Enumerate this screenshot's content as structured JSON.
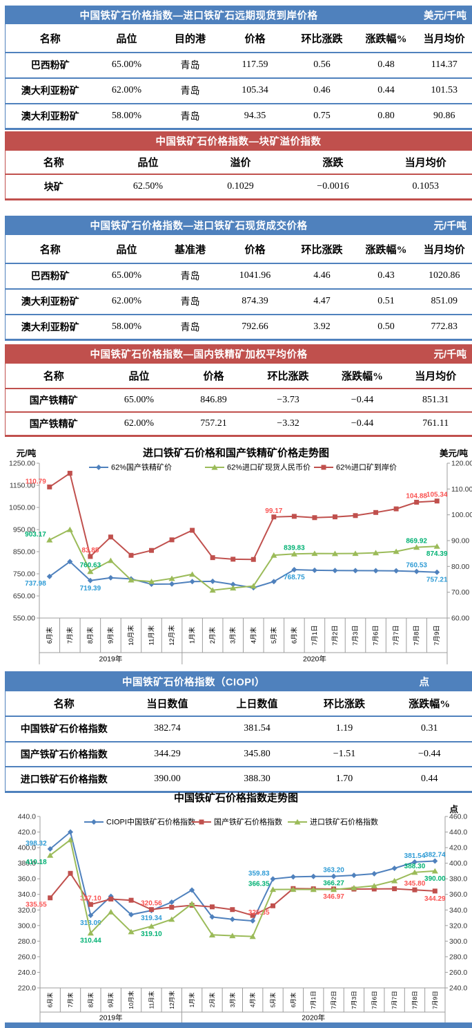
{
  "page": {
    "background": "#FFFFFF",
    "bottom_bar_color": "#4F81BD"
  },
  "colors": {
    "theme_blue": "#4F81BD",
    "theme_red": "#C0504D"
  },
  "tables": [
    {
      "theme": "blue",
      "title": "中国铁矿石价格指数—进口铁矿石远期现货到岸价格",
      "unit": "美元/千吨",
      "columns": [
        "名称",
        "品位",
        "目的港",
        "价格",
        "环比涨跌",
        "涨跌幅%",
        "当月均价"
      ],
      "rows": [
        [
          "巴西粉矿",
          "65.00%",
          "青岛",
          "117.59",
          "0.56",
          "0.48",
          "114.37"
        ],
        [
          "澳大利亚粉矿",
          "62.00%",
          "青岛",
          "105.34",
          "0.46",
          "0.44",
          "101.53"
        ],
        [
          "澳大利亚粉矿",
          "58.00%",
          "青岛",
          "94.35",
          "0.75",
          "0.80",
          "90.86"
        ]
      ]
    },
    {
      "theme": "red",
      "title": "中国铁矿石价格指数—块矿溢价指数",
      "unit": "",
      "columns": [
        "名称",
        "品位",
        "溢价",
        "涨跌",
        "当月均价"
      ],
      "rows": [
        [
          "块矿",
          "62.50%",
          "0.1029",
          "−0.0016",
          "0.1053"
        ]
      ]
    },
    {
      "theme": "blue",
      "title": "中国铁矿石价格指数—进口铁矿石现货成交价格",
      "unit": "元/千吨",
      "columns": [
        "名称",
        "品位",
        "基准港",
        "价格",
        "环比涨跌",
        "涨跌幅%",
        "当月均价"
      ],
      "rows": [
        [
          "巴西粉矿",
          "65.00%",
          "青岛",
          "1041.96",
          "4.46",
          "0.43",
          "1020.86"
        ],
        [
          "澳大利亚粉矿",
          "62.00%",
          "青岛",
          "874.39",
          "4.47",
          "0.51",
          "851.09"
        ],
        [
          "澳大利亚粉矿",
          "58.00%",
          "青岛",
          "792.66",
          "3.92",
          "0.50",
          "772.83"
        ]
      ]
    },
    {
      "theme": "red",
      "title": "中国铁矿石价格指数—国内铁精矿加权平均价格",
      "unit": "元/千吨",
      "columns": [
        "名称",
        "品位",
        "价格",
        "环比涨跌",
        "涨跌幅%",
        "当月均价"
      ],
      "rows": [
        [
          "国产铁精矿",
          "65.00%",
          "846.89",
          "−3.73",
          "−0.44",
          "851.31"
        ],
        [
          "国产铁精矿",
          "62.00%",
          "757.21",
          "−3.32",
          "−0.44",
          "761.11"
        ]
      ]
    },
    {
      "theme": "blue",
      "title": "中国铁矿石价格指数（CIOPI）",
      "unit": "点",
      "columns": [
        "名称",
        "当日数值",
        "上日数值",
        "环比涨跌",
        "涨跌幅%"
      ],
      "rows": [
        [
          "中国铁矿石价格指数",
          "382.74",
          "381.54",
          "1.19",
          "0.31"
        ],
        [
          "国产铁矿石价格指数",
          "344.29",
          "345.80",
          "−1.51",
          "−0.44"
        ],
        [
          "进口铁矿石价格指数",
          "390.00",
          "388.30",
          "1.70",
          "0.44"
        ]
      ]
    }
  ],
  "chart_data": [
    {
      "type": "line",
      "title": "进口铁矿石价格和国产铁精矿价格走势图",
      "left_axis": {
        "unit": "元/吨",
        "min": 550,
        "max": 1250,
        "step": 100,
        "decimals": 2
      },
      "right_axis": {
        "unit": "美元/吨",
        "min": 60,
        "max": 120,
        "step": 10,
        "decimals": 2
      },
      "grid": false,
      "legend_position": "top",
      "categories": [
        "6月末",
        "7月末",
        "8月末",
        "9月末",
        "10月末",
        "11月末",
        "12月末",
        "1月末",
        "2月末",
        "3月末",
        "4月末",
        "5月末",
        "6月末",
        "7月1日",
        "7月2日",
        "7月3日",
        "7月6日",
        "7月7日",
        "7月8日",
        "7月9日"
      ],
      "year_groups": [
        {
          "label": "2019年",
          "span": 7
        },
        {
          "label": "2020年",
          "span": 13
        }
      ],
      "series": [
        {
          "name": "62%国产铁精矿价",
          "color": "#4F81BD",
          "label_color": "#2E9BD5",
          "marker": "diamond",
          "axis": "left",
          "values": [
            737.98,
            805,
            719.39,
            732,
            727,
            703,
            704,
            715,
            716,
            702,
            687,
            715,
            768.75,
            766,
            765,
            764.5,
            764,
            763.5,
            760.53,
            757.21
          ],
          "labels": [
            {
              "i": 0,
              "t": "737.98",
              "pos": "left-below"
            },
            {
              "i": 2,
              "t": "719.39",
              "pos": "below"
            },
            {
              "i": 12,
              "t": "768.75",
              "pos": "below"
            },
            {
              "i": 18,
              "t": "760.53",
              "pos": "above"
            },
            {
              "i": 19,
              "t": "757.21",
              "pos": "below"
            }
          ]
        },
        {
          "name": "62%进口矿现货人民币价",
          "color": "#9BBB59",
          "label_color": "#00B173",
          "marker": "triangle",
          "axis": "left",
          "values": [
            903.17,
            950,
            760.63,
            810,
            722,
            715,
            729,
            748,
            676,
            686,
            695,
            834,
            839.83,
            842,
            841.5,
            842,
            845,
            851,
            869.92,
            874.39
          ],
          "labels": [
            {
              "i": 0,
              "t": "903.17",
              "pos": "left-above"
            },
            {
              "i": 2,
              "t": "760.63",
              "pos": "above"
            },
            {
              "i": 12,
              "t": "839.83",
              "pos": "above"
            },
            {
              "i": 18,
              "t": "869.92",
              "pos": "above"
            },
            {
              "i": 19,
              "t": "874.39",
              "pos": "below"
            }
          ]
        },
        {
          "name": "62%进口矿到岸价",
          "color": "#C0504D",
          "label_color": "#FA5352",
          "marker": "square",
          "axis": "right",
          "values": [
            110.79,
            116.1,
            83.85,
            91.4,
            84.3,
            86.2,
            90.3,
            94,
            83.4,
            82.8,
            82.7,
            99.17,
            99.4,
            98.9,
            99.2,
            99.7,
            100.9,
            102.3,
            104.88,
            105.34
          ],
          "labels": [
            {
              "i": 0,
              "t": "110.79",
              "pos": "left-above"
            },
            {
              "i": 2,
              "t": "83.85",
              "pos": "above"
            },
            {
              "i": 11,
              "t": "99.17",
              "pos": "above"
            },
            {
              "i": 18,
              "t": "104.88",
              "pos": "above"
            },
            {
              "i": 19,
              "t": "105.34",
              "pos": "above"
            }
          ]
        }
      ]
    },
    {
      "type": "line",
      "title": "中国铁矿石价格指数走势图",
      "left_axis": {
        "unit": "",
        "min": 220,
        "max": 440,
        "step": 20,
        "decimals": 1
      },
      "right_axis": {
        "unit": "点",
        "min": 240,
        "max": 460,
        "step": 20,
        "decimals": 1
      },
      "grid": false,
      "legend_position": "top",
      "categories": [
        "6月末",
        "7月末",
        "8月末",
        "9月末",
        "10月末",
        "11月末",
        "12月末",
        "1月末",
        "2月末",
        "3月末",
        "4月末",
        "5月末",
        "6月末",
        "7月1日",
        "7月2日",
        "7月3日",
        "7月6日",
        "7月7日",
        "7月8日",
        "7月9日"
      ],
      "year_groups": [
        {
          "label": "2019年",
          "span": 7
        },
        {
          "label": "2020年",
          "span": 13
        }
      ],
      "series": [
        {
          "name": "CIOPI中国铁矿石价格指数",
          "color": "#4F81BD",
          "label_color": "#2E9BD5",
          "marker": "diamond",
          "axis": "left",
          "values": [
            398.32,
            420,
            313.09,
            337.5,
            314,
            319.34,
            330,
            345.5,
            311,
            308,
            306,
            359.83,
            362.5,
            363,
            363.2,
            364.5,
            366.5,
            373.5,
            381.54,
            382.74
          ],
          "labels": [
            {
              "i": 0,
              "t": "398.32",
              "pos": "left-above"
            },
            {
              "i": 2,
              "t": "313.09",
              "pos": "below"
            },
            {
              "i": 5,
              "t": "319.34",
              "pos": "below"
            },
            {
              "i": 11,
              "t": "359.83",
              "pos": "left-above"
            },
            {
              "i": 14,
              "t": "363.20",
              "pos": "above"
            },
            {
              "i": 18,
              "t": "381.54",
              "pos": "above"
            },
            {
              "i": 19,
              "t": "382.74",
              "pos": "above"
            }
          ]
        },
        {
          "name": "国产铁矿石价格指数",
          "color": "#C0504D",
          "label_color": "#FA5352",
          "marker": "square",
          "axis": "left",
          "values": [
            335.55,
            367,
            327.1,
            334,
            332.5,
            320.56,
            323.5,
            326,
            324,
            320.5,
            313,
            325.35,
            347.5,
            347.2,
            346.97,
            346.8,
            346.9,
            347.2,
            345.8,
            344.29
          ],
          "labels": [
            {
              "i": 0,
              "t": "335.55",
              "pos": "left-below"
            },
            {
              "i": 2,
              "t": "327.10",
              "pos": "above"
            },
            {
              "i": 5,
              "t": "320.56",
              "pos": "above"
            },
            {
              "i": 11,
              "t": "325.35",
              "pos": "left-below"
            },
            {
              "i": 14,
              "t": "346.97",
              "pos": "below"
            },
            {
              "i": 18,
              "t": "345.80",
              "pos": "above"
            },
            {
              "i": 19,
              "t": "344.29",
              "pos": "below"
            }
          ]
        },
        {
          "name": "进口铁矿石价格指数",
          "color": "#9BBB59",
          "label_color": "#00B173",
          "marker": "triangle",
          "axis": "right",
          "values": [
            410.18,
            430,
            310.44,
            337.5,
            312,
            319.1,
            328,
            348,
            308,
            307,
            306,
            366.35,
            366.4,
            366.3,
            366.27,
            368.5,
            371,
            377.5,
            388.3,
            390
          ],
          "labels": [
            {
              "i": 0,
              "t": "410.18",
              "pos": "left-below"
            },
            {
              "i": 2,
              "t": "310.44",
              "pos": "below"
            },
            {
              "i": 5,
              "t": "319.10",
              "pos": "below"
            },
            {
              "i": 11,
              "t": "366.35",
              "pos": "left-above"
            },
            {
              "i": 14,
              "t": "366.27",
              "pos": "above"
            },
            {
              "i": 18,
              "t": "388.30",
              "pos": "above"
            },
            {
              "i": 19,
              "t": "390.00",
              "pos": "below"
            }
          ]
        }
      ]
    }
  ]
}
